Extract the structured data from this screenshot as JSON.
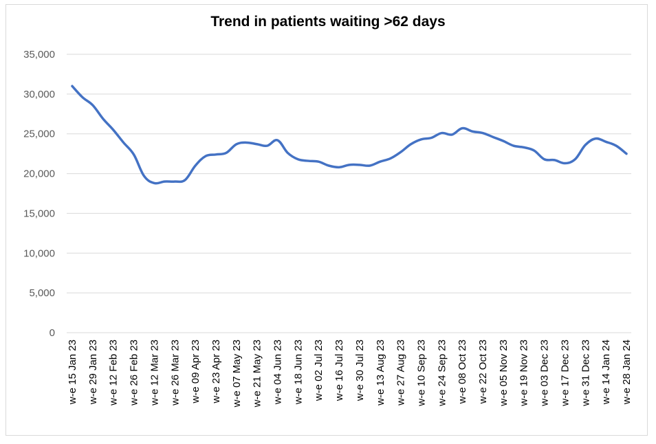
{
  "chart_data": {
    "type": "line",
    "title": "Trend in patients waiting >62 days",
    "xlabel": "",
    "ylabel": "",
    "ylim": [
      0,
      35000
    ],
    "yticks": [
      "0",
      "5,000",
      "10,000",
      "15,000",
      "20,000",
      "25,000",
      "30,000",
      "35,000"
    ],
    "ytick_values": [
      0,
      5000,
      10000,
      15000,
      20000,
      25000,
      30000,
      35000
    ],
    "grid": true,
    "legend": "none",
    "categories": [
      "w-e 15 Jan 23",
      "",
      "w-e 29 Jan 23",
      "",
      "w-e 12 Feb 23",
      "",
      "w-e 26 Feb 23",
      "",
      "w-e 12 Mar 23",
      "",
      "w-e 26 Mar 23",
      "",
      "w-e 09 Apr 23",
      "",
      "w-e 23 Apr 23",
      "",
      "w-e 07 May 23",
      "",
      "w-e 21 May 23",
      "",
      "w-e 04 Jun 23",
      "",
      "w-e 18 Jun 23",
      "",
      "w-e 02 Jul 23",
      "",
      "w-e 16 Jul 23",
      "",
      "w-e 30 Jul 23",
      "",
      "w-e 13 Aug 23",
      "",
      "w-e 27 Aug 23",
      "",
      "w-e 10 Sep 23",
      "",
      "w-e 24 Sep 23",
      "",
      "w-e 08 Oct 23",
      "",
      "w-e 22 Oct 23",
      "",
      "w-e 05 Nov 23",
      "",
      "w-e 19 Nov 23",
      "",
      "w-e 03 Dec 23",
      "",
      "w-e 17 Dec 23",
      "",
      "w-e 31 Dec 23",
      "",
      "w-e 14 Jan 24",
      "",
      "w-e 28 Jan 24"
    ],
    "series": [
      {
        "color": "#4472c4",
        "values": [
          31000,
          29600,
          28600,
          26900,
          25500,
          23900,
          22400,
          19700,
          18800,
          19000,
          19000,
          19200,
          21000,
          22200,
          22400,
          22600,
          23700,
          23900,
          23700,
          23500,
          24200,
          22600,
          21800,
          21600,
          21500,
          21000,
          20800,
          21100,
          21100,
          21000,
          21500,
          21900,
          22700,
          23700,
          24300,
          24500,
          25100,
          24900,
          25700,
          25300,
          25100,
          24600,
          24100,
          23500,
          23300,
          22900,
          21800,
          21700,
          21300,
          21800,
          23600,
          24400,
          24000,
          23500,
          22500
        ]
      }
    ]
  }
}
